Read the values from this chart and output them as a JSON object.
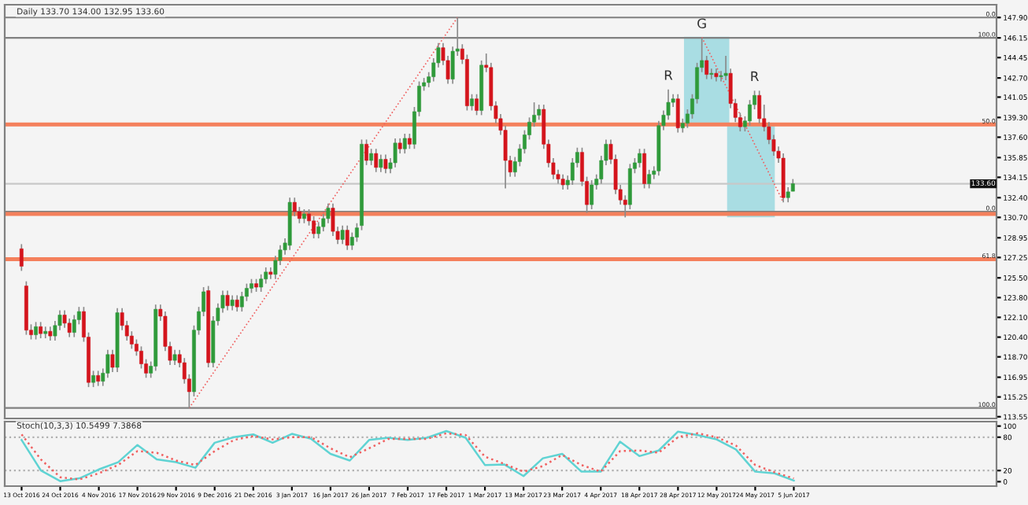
{
  "chart_data": [
    {
      "type": "candlestick",
      "title": "Daily 133.70 134.00 132.95 133.60",
      "tick_labels": "y",
      "grid": false,
      "legend": false,
      "categories": [
        null,
        null,
        null,
        null,
        null,
        null,
        null,
        null,
        null,
        null,
        null,
        null,
        null,
        null,
        null,
        null,
        null,
        null,
        null,
        null,
        null,
        null,
        null,
        null,
        null,
        null,
        null,
        null,
        null,
        null,
        null,
        null,
        null,
        null,
        null,
        null,
        null,
        null,
        null,
        null,
        null,
        null,
        null,
        null,
        null,
        null,
        null,
        null,
        null,
        null,
        null,
        null,
        null,
        null,
        null,
        null,
        null,
        null,
        null,
        null,
        null,
        null,
        null,
        null,
        null,
        null,
        null,
        null,
        null,
        null,
        null,
        null,
        null,
        null,
        null,
        null,
        null,
        null,
        null,
        null,
        null,
        null,
        null,
        null,
        null,
        null,
        null,
        null,
        null,
        null,
        null,
        null,
        null,
        null,
        null,
        null,
        null,
        null,
        null,
        null,
        null,
        null,
        null,
        null,
        null,
        null,
        null,
        null,
        null,
        null,
        null,
        null,
        null,
        null,
        null,
        null,
        null,
        null,
        null,
        null,
        null,
        null,
        null,
        null,
        null,
        null,
        null,
        null,
        null,
        null,
        null,
        null,
        null,
        null,
        null,
        null,
        null,
        null,
        null,
        null,
        null,
        null,
        null,
        null,
        null,
        null,
        null,
        null,
        null,
        null,
        null,
        null,
        null,
        null,
        null,
        null,
        null,
        null,
        null,
        null,
        null,
        null,
        null,
        null,
        null,
        null,
        null,
        null,
        null,
        null,
        null,
        null,
        null,
        null,
        null,
        null,
        null,
        null,
        null,
        null,
        null,
        null,
        null,
        null,
        null,
        null,
        null,
        null,
        null,
        null,
        null,
        null,
        null,
        null,
        null,
        null,
        null,
        null,
        null,
        null,
        null,
        null,
        null,
        null
      ],
      "ohlc": [
        [
          128.0,
          128.4,
          126.1,
          126.5
        ],
        [
          124.8,
          125.2,
          120.6,
          121.0
        ],
        [
          121.0,
          121.5,
          120.2,
          120.6
        ],
        [
          120.6,
          121.7,
          120.2,
          121.3
        ],
        [
          121.3,
          121.7,
          120.3,
          120.7
        ],
        [
          120.7,
          121.3,
          120.3,
          120.9
        ],
        [
          120.9,
          121.3,
          120.1,
          120.5
        ],
        [
          120.5,
          121.8,
          120.1,
          121.4
        ],
        [
          121.4,
          122.7,
          121.0,
          122.3
        ],
        [
          122.3,
          122.7,
          121.2,
          121.6
        ],
        [
          121.6,
          122.0,
          120.4,
          120.8
        ],
        [
          120.8,
          122.3,
          120.4,
          121.9
        ],
        [
          121.9,
          123.0,
          121.5,
          122.6
        ],
        [
          122.6,
          123.0,
          120.0,
          120.4
        ],
        [
          120.4,
          120.8,
          116.1,
          116.5
        ],
        [
          116.5,
          117.5,
          116.1,
          117.1
        ],
        [
          117.1,
          117.5,
          116.2,
          116.6
        ],
        [
          116.6,
          117.7,
          116.2,
          117.3
        ],
        [
          117.3,
          119.3,
          116.9,
          118.9
        ],
        [
          118.9,
          119.3,
          117.4,
          117.8
        ],
        [
          117.8,
          122.9,
          117.4,
          122.5
        ],
        [
          122.5,
          122.9,
          121.0,
          121.4
        ],
        [
          121.4,
          121.8,
          120.1,
          120.5
        ],
        [
          120.5,
          120.9,
          119.4,
          119.8
        ],
        [
          119.8,
          120.2,
          118.8,
          119.2
        ],
        [
          119.2,
          119.6,
          117.7,
          118.1
        ],
        [
          118.1,
          118.5,
          116.9,
          117.3
        ],
        [
          117.3,
          118.3,
          116.9,
          117.9
        ],
        [
          117.9,
          123.2,
          117.5,
          122.8
        ],
        [
          122.8,
          123.2,
          121.8,
          122.2
        ],
        [
          122.2,
          122.6,
          119.2,
          119.6
        ],
        [
          119.6,
          120.0,
          118.0,
          118.4
        ],
        [
          118.4,
          119.3,
          118.0,
          118.9
        ],
        [
          118.9,
          119.3,
          117.8,
          118.2
        ],
        [
          118.2,
          118.6,
          116.4,
          116.8
        ],
        [
          116.8,
          117.2,
          114.3,
          115.7
        ],
        [
          115.7,
          121.4,
          115.3,
          121.0
        ],
        [
          121.0,
          123.0,
          120.6,
          122.6
        ],
        [
          122.6,
          124.7,
          122.2,
          124.3
        ],
        [
          124.4,
          124.8,
          117.8,
          118.2
        ],
        [
          118.2,
          122.2,
          117.8,
          121.8
        ],
        [
          121.8,
          123.3,
          121.4,
          122.9
        ],
        [
          122.9,
          124.4,
          122.5,
          124.0
        ],
        [
          124.0,
          124.4,
          122.7,
          123.1
        ],
        [
          123.1,
          124.0,
          122.7,
          123.6
        ],
        [
          123.6,
          124.0,
          122.6,
          123.0
        ],
        [
          123.0,
          124.3,
          122.6,
          123.9
        ],
        [
          123.9,
          125.0,
          123.5,
          124.6
        ],
        [
          124.6,
          125.4,
          124.2,
          125.0
        ],
        [
          125.0,
          125.4,
          124.3,
          124.7
        ],
        [
          124.7,
          125.8,
          124.3,
          125.4
        ],
        [
          125.4,
          126.4,
          125.0,
          126.0
        ],
        [
          126.0,
          126.4,
          125.4,
          125.8
        ],
        [
          125.8,
          127.4,
          125.4,
          127.0
        ],
        [
          127.0,
          128.3,
          126.6,
          127.9
        ],
        [
          127.9,
          128.9,
          127.5,
          128.5
        ],
        [
          128.3,
          132.4,
          127.9,
          132.0
        ],
        [
          132.0,
          132.4,
          130.8,
          131.2
        ],
        [
          131.2,
          131.6,
          130.2,
          130.6
        ],
        [
          130.6,
          131.4,
          130.2,
          131.0
        ],
        [
          131.0,
          131.4,
          130.0,
          130.4
        ],
        [
          130.4,
          130.8,
          128.9,
          129.3
        ],
        [
          129.3,
          130.3,
          128.9,
          129.9
        ],
        [
          129.9,
          131.0,
          129.5,
          130.6
        ],
        [
          130.6,
          131.9,
          130.2,
          131.5
        ],
        [
          131.5,
          131.9,
          129.1,
          129.5
        ],
        [
          129.5,
          129.9,
          128.4,
          128.8
        ],
        [
          128.8,
          130.0,
          128.4,
          129.6
        ],
        [
          129.6,
          130.0,
          127.9,
          128.3
        ],
        [
          128.3,
          129.4,
          127.9,
          129.0
        ],
        [
          129.0,
          130.2,
          128.6,
          129.8
        ],
        [
          130.0,
          137.4,
          129.6,
          137.0
        ],
        [
          137.0,
          137.4,
          135.2,
          135.6
        ],
        [
          135.6,
          136.6,
          135.2,
          136.2
        ],
        [
          136.2,
          136.6,
          134.6,
          135.0
        ],
        [
          135.0,
          136.1,
          134.6,
          135.7
        ],
        [
          135.7,
          136.1,
          134.5,
          134.9
        ],
        [
          134.9,
          135.8,
          134.5,
          135.4
        ],
        [
          135.4,
          137.5,
          135.0,
          137.1
        ],
        [
          137.1,
          137.5,
          136.2,
          136.6
        ],
        [
          136.6,
          137.9,
          136.2,
          137.5
        ],
        [
          137.5,
          137.9,
          136.6,
          137.0
        ],
        [
          137.0,
          140.2,
          136.6,
          139.8
        ],
        [
          139.8,
          142.4,
          139.4,
          142.0
        ],
        [
          142.0,
          142.7,
          141.6,
          142.3
        ],
        [
          142.3,
          143.2,
          141.9,
          142.8
        ],
        [
          142.8,
          144.4,
          142.4,
          144.0
        ],
        [
          144.0,
          145.7,
          143.6,
          145.3
        ],
        [
          145.3,
          145.7,
          143.8,
          144.2
        ],
        [
          144.2,
          144.6,
          142.2,
          142.6
        ],
        [
          142.6,
          145.4,
          142.2,
          145.0
        ],
        [
          145.0,
          147.9,
          144.6,
          145.2
        ],
        [
          145.2,
          145.6,
          143.9,
          144.3
        ],
        [
          144.3,
          144.7,
          139.9,
          140.3
        ],
        [
          140.3,
          141.3,
          139.9,
          140.9
        ],
        [
          140.9,
          141.3,
          139.5,
          139.9
        ],
        [
          139.9,
          144.2,
          139.5,
          143.8
        ],
        [
          143.8,
          144.8,
          143.2,
          143.6
        ],
        [
          143.6,
          144.0,
          139.9,
          140.3
        ],
        [
          140.3,
          140.7,
          138.8,
          139.2
        ],
        [
          139.2,
          139.6,
          137.8,
          138.2
        ],
        [
          138.2,
          138.6,
          133.2,
          135.6
        ],
        [
          135.6,
          136.0,
          134.2,
          134.6
        ],
        [
          134.6,
          135.9,
          134.2,
          135.5
        ],
        [
          135.5,
          137.0,
          135.1,
          136.6
        ],
        [
          136.6,
          138.2,
          136.2,
          137.8
        ],
        [
          137.8,
          139.3,
          137.4,
          138.9
        ],
        [
          138.9,
          140.6,
          138.5,
          139.5
        ],
        [
          139.5,
          140.4,
          139.1,
          140.0
        ],
        [
          140.0,
          140.4,
          136.6,
          137.0
        ],
        [
          137.0,
          137.4,
          135.0,
          135.4
        ],
        [
          135.4,
          135.8,
          134.0,
          134.4
        ],
        [
          134.4,
          134.8,
          133.6,
          134.0
        ],
        [
          134.0,
          134.4,
          133.1,
          133.5
        ],
        [
          133.5,
          134.3,
          133.1,
          133.9
        ],
        [
          133.9,
          135.8,
          133.5,
          135.4
        ],
        [
          135.4,
          136.7,
          135.0,
          136.3
        ],
        [
          136.3,
          136.7,
          133.4,
          133.8
        ],
        [
          133.8,
          134.2,
          131.1,
          131.8
        ],
        [
          131.8,
          133.9,
          131.4,
          133.5
        ],
        [
          133.5,
          134.4,
          133.1,
          134.0
        ],
        [
          134.0,
          136.0,
          133.6,
          135.6
        ],
        [
          135.6,
          137.4,
          135.2,
          137.0
        ],
        [
          137.0,
          137.4,
          135.3,
          135.7
        ],
        [
          135.7,
          136.1,
          132.7,
          133.1
        ],
        [
          133.1,
          133.5,
          131.8,
          132.2
        ],
        [
          132.2,
          132.6,
          130.7,
          131.8
        ],
        [
          131.8,
          135.3,
          131.4,
          134.9
        ],
        [
          134.9,
          135.8,
          134.5,
          135.4
        ],
        [
          135.4,
          136.6,
          135.0,
          136.2
        ],
        [
          136.2,
          136.6,
          133.2,
          133.6
        ],
        [
          133.6,
          134.8,
          133.2,
          134.4
        ],
        [
          134.4,
          135.1,
          134.0,
          134.7
        ],
        [
          134.7,
          139.0,
          134.3,
          138.6
        ],
        [
          138.6,
          139.9,
          138.2,
          139.5
        ],
        [
          139.5,
          141.7,
          139.1,
          140.6
        ],
        [
          140.6,
          141.3,
          140.2,
          140.9
        ],
        [
          140.9,
          141.3,
          138.0,
          138.4
        ],
        [
          138.4,
          139.2,
          138.0,
          138.8
        ],
        [
          138.8,
          140.0,
          138.4,
          139.6
        ],
        [
          139.6,
          141.3,
          139.2,
          140.9
        ],
        [
          140.9,
          144.0,
          140.5,
          143.6
        ],
        [
          143.6,
          146.15,
          143.2,
          144.2
        ],
        [
          144.2,
          144.6,
          142.6,
          143.0
        ],
        [
          143.0,
          143.5,
          142.6,
          143.1
        ],
        [
          143.1,
          143.5,
          142.4,
          142.8
        ],
        [
          142.8,
          143.3,
          142.4,
          142.9
        ],
        [
          142.9,
          144.6,
          142.5,
          143.1
        ],
        [
          143.1,
          143.5,
          140.1,
          140.5
        ],
        [
          140.5,
          140.9,
          138.9,
          139.3
        ],
        [
          139.3,
          139.7,
          138.1,
          138.5
        ],
        [
          138.5,
          139.4,
          138.1,
          139.0
        ],
        [
          139.0,
          140.8,
          138.6,
          140.4
        ],
        [
          140.4,
          141.6,
          140.0,
          141.2
        ],
        [
          141.2,
          141.6,
          138.8,
          139.2
        ],
        [
          139.2,
          140.4,
          138.1,
          138.5
        ],
        [
          138.5,
          138.9,
          137.0,
          137.4
        ],
        [
          137.4,
          137.8,
          136.0,
          136.4
        ],
        [
          136.4,
          136.8,
          135.4,
          135.8
        ],
        [
          135.8,
          136.2,
          132.0,
          132.4
        ],
        [
          132.4,
          133.3,
          132.0,
          132.9
        ],
        [
          132.95,
          134.0,
          132.95,
          133.6
        ],
        null,
        null,
        null,
        null,
        null,
        null,
        null,
        null,
        null,
        null,
        null,
        null,
        null,
        null,
        null,
        null,
        null,
        null,
        null,
        null,
        null,
        null,
        null,
        null,
        null,
        null,
        null,
        null,
        null,
        null,
        null,
        null,
        null,
        null,
        null,
        null,
        null,
        null,
        null,
        null,
        null,
        null
      ],
      "series": [
        {
          "type": "line",
          "color": "#f06060",
          "line_style": "dotted",
          "values": [
            null,
            null,
            null,
            null,
            null,
            null,
            null,
            null,
            null,
            null,
            null,
            null,
            null,
            null,
            null,
            null,
            null,
            null,
            null,
            null,
            null,
            null,
            null,
            null,
            null,
            null,
            null,
            null,
            null,
            null,
            null,
            null,
            null,
            null,
            null,
            114.3,
            null,
            null,
            null,
            null,
            null,
            null,
            null,
            null,
            null,
            null,
            null,
            null,
            null,
            null,
            null,
            null,
            null,
            null,
            null,
            null,
            null,
            null,
            null,
            null,
            null,
            null,
            null,
            null,
            null,
            null,
            null,
            null,
            null,
            null,
            null,
            null,
            null,
            null,
            null,
            null,
            null,
            null,
            null,
            null,
            null,
            null,
            null,
            null,
            null,
            null,
            null,
            null,
            null,
            null,
            null,
            147.9,
            null,
            null,
            null,
            null,
            null,
            null,
            null,
            null,
            null,
            null,
            null,
            null,
            null,
            null,
            null,
            null,
            null,
            null,
            null,
            null,
            null,
            null,
            null,
            null,
            null,
            null,
            null,
            null,
            null,
            null,
            null,
            null,
            null,
            null,
            null,
            null,
            null,
            null,
            null,
            null,
            null,
            null,
            null,
            null,
            null,
            null,
            null,
            null,
            null,
            null,
            null,
            null,
            null,
            null,
            null,
            null,
            null,
            null,
            null,
            null,
            null,
            null,
            null,
            null,
            null,
            null,
            null,
            null,
            null,
            null,
            null,
            null,
            null,
            null,
            null,
            null,
            null,
            null,
            null,
            null,
            null,
            null,
            null,
            null,
            null,
            null,
            null,
            null,
            null,
            null,
            null,
            null,
            null,
            null,
            null,
            null,
            null,
            null,
            null,
            null,
            null,
            null,
            null,
            null,
            null,
            null,
            null,
            null,
            null,
            null,
            null,
            null
          ]
        },
        {
          "type": "line",
          "color": "#f06060",
          "line_style": "dotted",
          "values": [
            null,
            null,
            null,
            null,
            null,
            null,
            null,
            null,
            null,
            null,
            null,
            null,
            null,
            null,
            null,
            null,
            null,
            null,
            null,
            null,
            null,
            null,
            null,
            null,
            null,
            null,
            null,
            null,
            null,
            null,
            null,
            null,
            null,
            null,
            null,
            null,
            null,
            null,
            null,
            null,
            null,
            null,
            null,
            null,
            null,
            null,
            null,
            null,
            null,
            null,
            null,
            null,
            null,
            null,
            null,
            null,
            null,
            null,
            null,
            null,
            null,
            null,
            null,
            null,
            null,
            null,
            null,
            null,
            null,
            null,
            null,
            null,
            null,
            null,
            null,
            null,
            null,
            null,
            null,
            null,
            null,
            null,
            null,
            null,
            null,
            null,
            null,
            null,
            null,
            null,
            null,
            null,
            null,
            null,
            null,
            null,
            null,
            null,
            null,
            null,
            null,
            null,
            null,
            null,
            null,
            null,
            null,
            null,
            null,
            null,
            null,
            null,
            null,
            null,
            null,
            null,
            null,
            null,
            null,
            null,
            null,
            null,
            null,
            null,
            null,
            null,
            null,
            null,
            null,
            null,
            null,
            null,
            null,
            null,
            null,
            null,
            null,
            null,
            null,
            null,
            null,
            null,
            146.2,
            null,
            null,
            null,
            null,
            null,
            null,
            null,
            null,
            null,
            null,
            null,
            null,
            null,
            null,
            null,
            null,
            132.0,
            null,
            null,
            null,
            null,
            null,
            null,
            null,
            null,
            null,
            null,
            null,
            null,
            null,
            null,
            null,
            null,
            null,
            null,
            null,
            null,
            null,
            null,
            null,
            null,
            null,
            null,
            null,
            null,
            null,
            null,
            null,
            null,
            null,
            null,
            null,
            null,
            null,
            null,
            null,
            null,
            null,
            null,
            null,
            null
          ]
        }
      ],
      "ylim": [
        113.4,
        149.0
      ],
      "yticks": [
        {
          "value": 147.9,
          "label": "147.90"
        },
        146.15,
        144.45,
        {
          "value": 142.7,
          "label": "142.70"
        },
        141.05,
        {
          "value": 139.3,
          "label": "139.30"
        },
        {
          "value": 137.6,
          "label": "137.60"
        },
        135.85,
        134.15,
        {
          "value": 132.4,
          "label": "132.40"
        },
        {
          "value": 130.7,
          "label": "130.70"
        },
        128.95,
        127.25,
        {
          "value": 125.5,
          "label": "125.50"
        },
        {
          "value": 123.8,
          "label": "123.80"
        },
        {
          "value": 122.1,
          "label": "122.10"
        },
        {
          "value": 120.4,
          "label": "120.40"
        },
        {
          "value": 118.7,
          "label": "118.70"
        },
        116.95,
        115.25,
        113.55
      ],
      "ref_lines": [
        {
          "axis": "y",
          "value": 147.9,
          "color": "#808080"
        },
        {
          "axis": "y",
          "value": 146.15,
          "color": "#808080"
        },
        {
          "axis": "y",
          "value": 138.7,
          "color": "#f4805c"
        },
        {
          "axis": "y",
          "value": 133.6,
          "label": "133.60",
          "color": "#c8c8c8"
        },
        {
          "axis": "y",
          "value": 131.2,
          "color": "#808080"
        },
        {
          "axis": "y",
          "value": 131.0,
          "color": "#f4805c"
        },
        {
          "axis": "y",
          "value": 127.1,
          "color": "#f4805c"
        },
        {
          "axis": "y",
          "value": 114.3,
          "color": "#808080"
        }
      ],
      "annotations": [
        {
          "text": "R"
        },
        {
          "text": "G"
        },
        {
          "text": "R"
        },
        {
          "text": "0.0",
          "y": 147.9
        },
        {
          "text": "100.0",
          "y": 146.15
        },
        {
          "text": "50.0",
          "y": 138.7
        },
        {
          "text": "0.0",
          "y": 131.2
        },
        {
          "text": "61.8",
          "y": 127.1
        },
        {
          "text": "100.0",
          "y": 114.3
        }
      ]
    },
    {
      "type": "line",
      "title": "Stoch(10,3,3) 10.5499 7.3868",
      "grid": false,
      "legend": false,
      "categories": [
        "13 Oct 2016",
        null,
        "24 Oct 2016",
        null,
        "4 Nov 2016",
        null,
        "17 Nov 2016",
        null,
        "29 Nov 2016",
        null,
        "9 Dec 2016",
        null,
        "21 Dec 2016",
        null,
        "3 Jan 2017",
        null,
        "16 Jan 2017",
        null,
        "26 Jan 2017",
        null,
        "7 Feb 2017",
        null,
        "17 Feb 2017",
        null,
        "1 Mar 2017",
        null,
        "13 Mar 2017",
        null,
        "23 Mar 2017",
        null,
        "4 Apr 2017",
        null,
        "18 Apr 2017",
        null,
        "28 Apr 2017",
        null,
        "12 May 2017",
        null,
        "24 May 2017",
        null,
        "5 Jun 2017",
        null,
        null,
        null,
        null,
        null,
        null,
        null,
        null,
        null,
        null
      ],
      "series": [
        {
          "color": "#5fd3d3",
          "line_style": "solid",
          "values": [
            75,
            20,
            1,
            6,
            22,
            35,
            66,
            40,
            35,
            25,
            70,
            80,
            85,
            70,
            86,
            77,
            50,
            38,
            75,
            79,
            75,
            79,
            91,
            79,
            30,
            31,
            10,
            42,
            50,
            18,
            18,
            72,
            46,
            56,
            90,
            84,
            76,
            58,
            18,
            15,
            2,
            null,
            null,
            null,
            null,
            null,
            null,
            null,
            null,
            null,
            null
          ]
        },
        {
          "color": "#f06060",
          "line_style": "dotted",
          "values": [
            85,
            40,
            8,
            4,
            15,
            30,
            55,
            52,
            38,
            30,
            55,
            75,
            82,
            76,
            80,
            80,
            60,
            44,
            60,
            77,
            77,
            77,
            87,
            84,
            45,
            32,
            18,
            28,
            48,
            30,
            18,
            55,
            56,
            52,
            80,
            87,
            80,
            65,
            30,
            17,
            6,
            null,
            null,
            null,
            null,
            null,
            null,
            null,
            null,
            null,
            null
          ]
        }
      ],
      "ylim": [
        -8,
        108
      ],
      "yticks": [
        0,
        20,
        80,
        100
      ],
      "ref_lines": [
        {
          "axis": "y",
          "value": 20,
          "color": "#b0b0b0",
          "line_style": "dotted"
        },
        {
          "axis": "y",
          "value": 80,
          "color": "#b0b0b0",
          "line_style": "dotted"
        }
      ]
    }
  ]
}
